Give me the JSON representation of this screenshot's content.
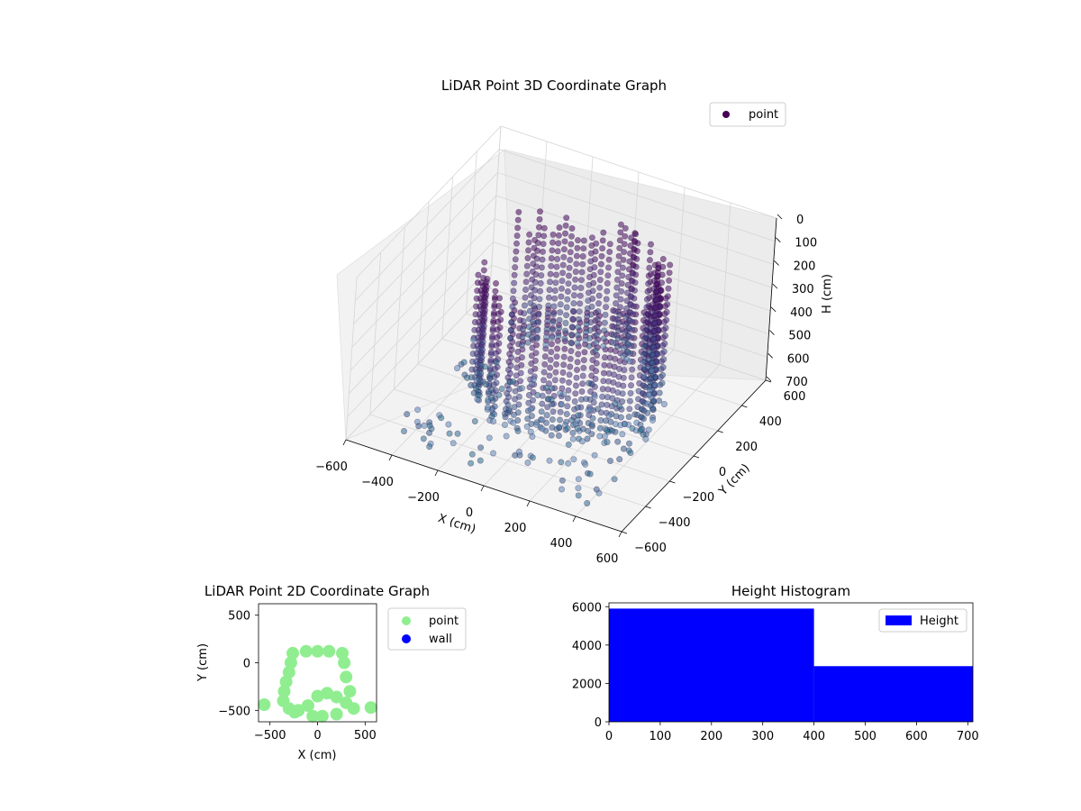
{
  "chart_data": [
    {
      "type": "scatter",
      "subtype": "3d",
      "title": "LiDAR Point 3D Coordinate Graph",
      "xlabel": "X (cm)",
      "ylabel": "Y (cm)",
      "zlabel": "H (cm)",
      "xlim": [
        -600,
        600
      ],
      "ylim": [
        -600,
        600
      ],
      "zlim": [
        0,
        700
      ],
      "z_inverted": true,
      "xticks": [
        "−600",
        "−400",
        "−200",
        "0",
        "200",
        "400",
        "600"
      ],
      "yticks": [
        "−600",
        "−400",
        "−200",
        "0",
        "200",
        "400",
        "600"
      ],
      "zticks": [
        "0",
        "100",
        "200",
        "300",
        "400",
        "500",
        "600",
        "700"
      ],
      "grid": true,
      "colormap": "viridis",
      "legend": {
        "position": "top-right",
        "entries": [
          {
            "label": "point",
            "color": "#440154"
          }
        ]
      },
      "series": [
        {
          "name": "point",
          "description_of_shape": "dense rows of vertical point columns forming a U-shaped ring, plus scattered low points",
          "rings": [
            {
              "y_center": 0,
              "x_range": [
                -550,
                550
              ],
              "h_range": [
                0,
                650
              ]
            }
          ]
        }
      ]
    },
    {
      "type": "scatter",
      "title": "LiDAR Point 2D Coordinate Graph",
      "xlabel": "X (cm)",
      "ylabel": "Y (cm)",
      "xlim": [
        -620,
        620
      ],
      "ylim": [
        -620,
        620
      ],
      "xticks": [
        "−500",
        "0",
        "500"
      ],
      "yticks": [
        "−500",
        "0",
        "500"
      ],
      "legend": {
        "position": "outside-right",
        "entries": [
          {
            "label": "point",
            "color": "#90ee90"
          },
          {
            "label": "wall",
            "color": "#0000ff"
          }
        ]
      },
      "series": [
        {
          "name": "point",
          "color": "#90ee90",
          "points": [
            [
              -260,
              100
            ],
            [
              -120,
              120
            ],
            [
              0,
              120
            ],
            [
              120,
              120
            ],
            [
              260,
              100
            ],
            [
              -280,
              0
            ],
            [
              -300,
              -100
            ],
            [
              -330,
              -200
            ],
            [
              -350,
              -300
            ],
            [
              -360,
              -400
            ],
            [
              -300,
              -480
            ],
            [
              -200,
              -500
            ],
            [
              -100,
              -450
            ],
            [
              0,
              -350
            ],
            [
              100,
              -320
            ],
            [
              200,
              -360
            ],
            [
              300,
              -420
            ],
            [
              380,
              -480
            ],
            [
              340,
              -300
            ],
            [
              300,
              -150
            ],
            [
              280,
              0
            ],
            [
              -560,
              -440
            ],
            [
              560,
              -470
            ],
            [
              -240,
              -520
            ],
            [
              -50,
              -560
            ],
            [
              50,
              -560
            ],
            [
              200,
              -540
            ]
          ]
        },
        {
          "name": "wall",
          "color": "#0000ff",
          "points": []
        }
      ]
    },
    {
      "type": "bar",
      "subtype": "histogram",
      "title": "Height Histogram",
      "xlabel": "",
      "ylabel": "",
      "xlim": [
        0,
        710
      ],
      "ylim": [
        0,
        6200
      ],
      "xticks": [
        "0",
        "100",
        "200",
        "300",
        "400",
        "500",
        "600",
        "700"
      ],
      "yticks": [
        "0",
        "2000",
        "4000",
        "6000"
      ],
      "legend": {
        "position": "top-right",
        "entries": [
          {
            "label": "Height",
            "color": "#0000ff"
          }
        ]
      },
      "bins": [
        {
          "from": 0,
          "to": 400,
          "count": 5900
        },
        {
          "from": 400,
          "to": 710,
          "count": 2900
        }
      ],
      "color": "#0000ff"
    }
  ]
}
